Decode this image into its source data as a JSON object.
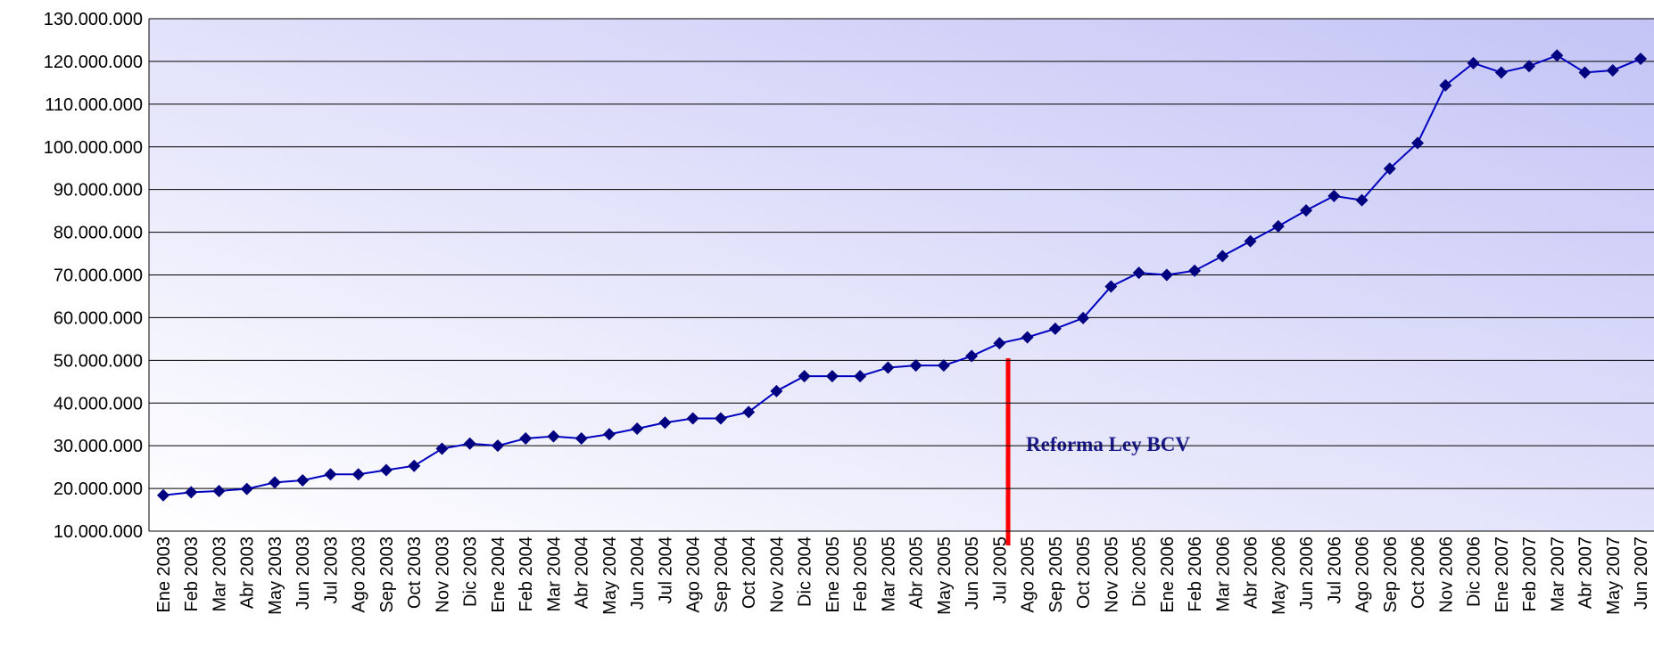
{
  "chart_data": {
    "type": "line",
    "categories": [
      "Ene 2003",
      "Feb 2003",
      "Mar 2003",
      "Abr 2003",
      "May 2003",
      "Jun 2003",
      "Jul 2003",
      "Ago 2003",
      "Sep 2003",
      "Oct 2003",
      "Nov 2003",
      "Dic 2003",
      "Ene 2004",
      "Feb 2004",
      "Mar 2004",
      "Abr 2004",
      "May 2004",
      "Jun 2004",
      "Jul 2004",
      "Ago 2004",
      "Sep 2004",
      "Oct 2004",
      "Nov 2004",
      "Dic 2004",
      "Ene 2005",
      "Feb 2005",
      "Mar 2005",
      "Abr 2005",
      "May 2005",
      "Jun 2005",
      "Jul 2005",
      "Ago 2005",
      "Sep 2005",
      "Oct 2005",
      "Nov 2005",
      "Dic 2005",
      "Ene 2006",
      "Feb 2006",
      "Mar 2006",
      "Abr 2006",
      "May 2006",
      "Jun 2006",
      "Jul 2006",
      "Ago 2006",
      "Sep 2006",
      "Oct 2006",
      "Nov 2006",
      "Dic 2006",
      "Ene 2007",
      "Feb 2007",
      "Mar 2007",
      "Abr 2007",
      "May 2007",
      "Jun 2007"
    ],
    "values": [
      18400000,
      19100000,
      19400000,
      19900000,
      21400000,
      21900000,
      23300000,
      23300000,
      24300000,
      25300000,
      29300000,
      30500000,
      30000000,
      31700000,
      32200000,
      31700000,
      32700000,
      34000000,
      35400000,
      36400000,
      36400000,
      37900000,
      42800000,
      46300000,
      46300000,
      46300000,
      48300000,
      48800000,
      48800000,
      51000000,
      54000000,
      55400000,
      57400000,
      59900000,
      67300000,
      70500000,
      70000000,
      71000000,
      74400000,
      77900000,
      81400000,
      85100000,
      88500000,
      87500000,
      94900000,
      100900000,
      114400000,
      119600000,
      117400000,
      118900000,
      121400000,
      117400000,
      117900000,
      120600000
    ],
    "color": "#0000c0",
    "marker_color": "#000080",
    "ylim": [
      10000000,
      130000000
    ],
    "yticks": [
      {
        "value": 10000000,
        "label": "10.000.000"
      },
      {
        "value": 20000000,
        "label": "20.000.000"
      },
      {
        "value": 30000000,
        "label": "30.000.000"
      },
      {
        "value": 40000000,
        "label": "40.000.000"
      },
      {
        "value": 50000000,
        "label": "50.000.000"
      },
      {
        "value": 60000000,
        "label": "60.000.000"
      },
      {
        "value": 70000000,
        "label": "70.000.000"
      },
      {
        "value": 80000000,
        "label": "80.000.000"
      },
      {
        "value": 90000000,
        "label": "90.000.000"
      },
      {
        "value": 100000000,
        "label": "100.000.000"
      },
      {
        "value": 110000000,
        "label": "110.000.000"
      },
      {
        "value": 120000000,
        "label": "120.000.000"
      },
      {
        "value": 130000000,
        "label": "130.000.000"
      }
    ],
    "grid": true,
    "annotation": "Reforma Ley BCV"
  }
}
